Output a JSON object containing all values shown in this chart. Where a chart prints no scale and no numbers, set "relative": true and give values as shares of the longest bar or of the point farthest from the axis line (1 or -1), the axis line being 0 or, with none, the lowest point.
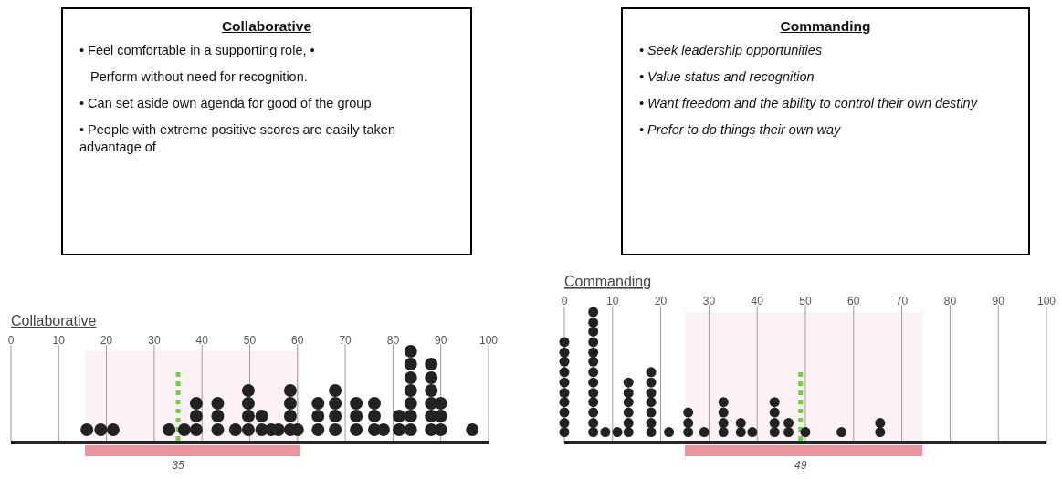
{
  "chart_data": [
    {
      "type": "other",
      "title": "Collaborative",
      "annotations": [
        "• Feel comfortable in a supporting role, •",
        "Perform without need for recognition.",
        "• Can set aside own agenda for good of the group",
        "• People with extreme positive scores are easily taken advantage of"
      ]
    },
    {
      "type": "other",
      "title": "Commanding",
      "annotations": [
        "• Seek leadership opportunities",
        "• Value status and recognition",
        "• Want freedom and the ability to control their own destiny",
        "• Prefer to do things their own way"
      ]
    },
    {
      "type": "scatter",
      "title": "Collaborative",
      "relative": true,
      "marker": "circle",
      "color": "#222222",
      "grid": "x",
      "xlim": [
        0,
        100
      ],
      "xticks": [
        0,
        10,
        20,
        30,
        40,
        50,
        60,
        70,
        80,
        90,
        100
      ],
      "x": [
        15.9,
        18.8,
        21.4,
        33.1,
        36.3,
        38.8,
        38.8,
        38.8,
        43.3,
        43.3,
        43.3,
        47,
        49.7,
        49.7,
        49.7,
        49.7,
        52.5,
        52.5,
        54.5,
        56,
        58.5,
        58.5,
        58.5,
        58.5,
        60,
        64.3,
        64.3,
        64.3,
        67.9,
        67.9,
        67.9,
        67.9,
        72.3,
        72.3,
        72.3,
        76.1,
        76.1,
        76.1,
        78,
        81.3,
        81.3,
        83.7,
        83.7,
        83.7,
        83.7,
        83.7,
        83.7,
        83.7,
        88,
        88,
        88,
        88,
        88,
        88,
        90,
        90,
        90,
        96.6
      ],
      "values": [
        0.14,
        0.14,
        0.14,
        0.14,
        0.14,
        0.14,
        0.29,
        0.43,
        0.14,
        0.29,
        0.43,
        0.14,
        0.14,
        0.29,
        0.43,
        0.57,
        0.14,
        0.29,
        0.14,
        0.14,
        0.14,
        0.29,
        0.43,
        0.57,
        0.14,
        0.14,
        0.29,
        0.43,
        0.14,
        0.29,
        0.43,
        0.57,
        0.14,
        0.29,
        0.43,
        0.14,
        0.29,
        0.43,
        0.14,
        0.14,
        0.29,
        0.14,
        0.29,
        0.43,
        0.57,
        0.71,
        0.86,
        1,
        0.14,
        0.29,
        0.43,
        0.57,
        0.71,
        0.86,
        0.14,
        0.29,
        0.43,
        0.14
      ],
      "bands": [
        {
          "axis": "x",
          "from": 15.5,
          "to": 60.5,
          "color": "#e8959f"
        }
      ],
      "ref_lines": [
        {
          "axis": "x",
          "value": 35,
          "label": "35",
          "color": "#7cc855",
          "line_style": "dotted"
        }
      ]
    },
    {
      "type": "scatter",
      "title": "Commanding",
      "relative": true,
      "marker": "circle",
      "color": "#222222",
      "grid": "x",
      "xlim": [
        0,
        100
      ],
      "xticks": [
        0,
        10,
        20,
        30,
        40,
        50,
        60,
        70,
        80,
        90,
        100
      ],
      "x": [
        0,
        0,
        0,
        0,
        0,
        0,
        0,
        0,
        0,
        0,
        6,
        6,
        6,
        6,
        6,
        6,
        6,
        6,
        6,
        6,
        6,
        6,
        6,
        8.5,
        11,
        13.3,
        13.3,
        13.3,
        13.3,
        13.3,
        13.3,
        18,
        18,
        18,
        18,
        18,
        18,
        18,
        21.7,
        25.7,
        25.7,
        25.7,
        29,
        33,
        33,
        33,
        33,
        36.6,
        36.6,
        39,
        43.6,
        43.6,
        43.6,
        43.6,
        46.5,
        46.5,
        50,
        57.5,
        65.5,
        65.5
      ],
      "values": [
        0.08,
        0.15,
        0.23,
        0.31,
        0.38,
        0.46,
        0.54,
        0.62,
        0.69,
        0.77,
        0.08,
        0.15,
        0.23,
        0.31,
        0.38,
        0.46,
        0.54,
        0.62,
        0.69,
        0.77,
        0.85,
        0.92,
        1,
        0.08,
        0.08,
        0.08,
        0.15,
        0.23,
        0.31,
        0.38,
        0.46,
        0.08,
        0.15,
        0.23,
        0.31,
        0.38,
        0.46,
        0.54,
        0.08,
        0.08,
        0.15,
        0.23,
        0.08,
        0.08,
        0.15,
        0.23,
        0.31,
        0.08,
        0.15,
        0.08,
        0.08,
        0.15,
        0.23,
        0.31,
        0.08,
        0.15,
        0.08,
        0.08,
        0.08,
        0.15
      ],
      "bands": [
        {
          "axis": "x",
          "from": 25,
          "to": 74.3,
          "color": "#e8959f"
        }
      ],
      "ref_lines": [
        {
          "axis": "x",
          "value": 49,
          "label": "49",
          "color": "#7cc855",
          "line_style": "dotted"
        }
      ]
    }
  ]
}
